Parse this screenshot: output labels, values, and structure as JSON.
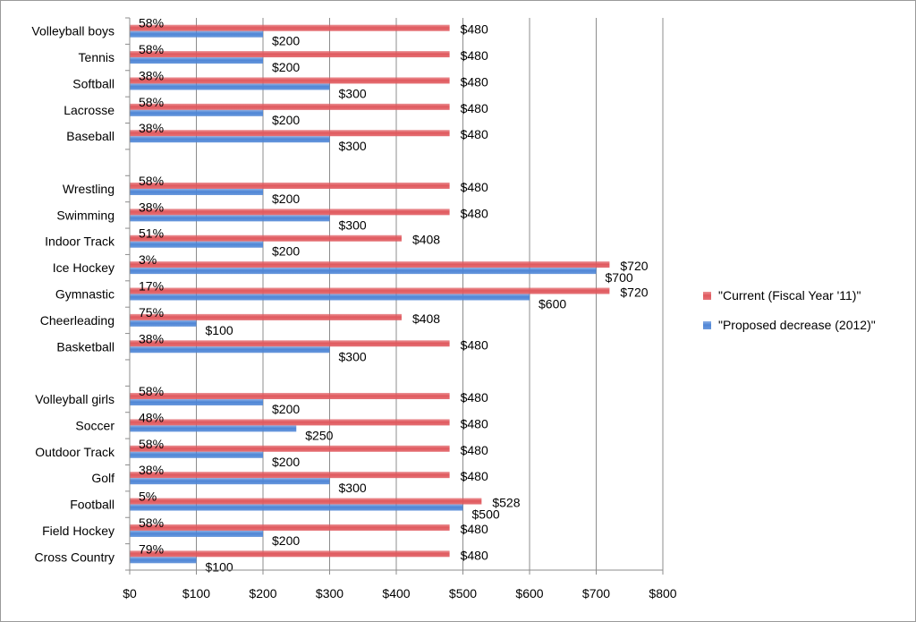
{
  "chart_data": {
    "type": "bar",
    "orientation": "horizontal",
    "categories": [
      "Volleyball boys",
      "Tennis",
      "Softball",
      "Lacrosse",
      "Baseball",
      "",
      "Wrestling",
      "Swimming",
      "Indoor Track",
      "Ice Hockey",
      "Gymnastic",
      "Cheerleading",
      "Basketball",
      "",
      "Volleyball girls",
      "Soccer",
      "Outdoor Track",
      "Golf",
      "Football",
      "Field Hockey",
      "Cross Country"
    ],
    "series": [
      {
        "name": "\"Current (Fiscal Year '11)\"",
        "color": "#e0595e",
        "values": [
          480,
          480,
          480,
          480,
          480,
          null,
          480,
          480,
          408,
          720,
          720,
          408,
          480,
          null,
          480,
          480,
          480,
          480,
          528,
          480,
          480
        ],
        "labels": [
          "$480",
          "$480",
          "$480",
          "$480",
          "$480",
          "",
          "$480",
          "$480",
          "$408",
          "$720",
          "$720",
          "$408",
          "$480",
          "",
          "$480",
          "$480",
          "$480",
          "$480",
          "$528",
          "$480",
          "$480"
        ]
      },
      {
        "name": "\"Proposed decrease (2012)\"",
        "color": "#4f86d6",
        "values": [
          200,
          200,
          300,
          200,
          300,
          null,
          200,
          300,
          200,
          700,
          600,
          100,
          300,
          null,
          200,
          250,
          200,
          300,
          500,
          200,
          100
        ],
        "labels": [
          "$200",
          "$200",
          "$300",
          "$200",
          "$300",
          "",
          "$200",
          "$300",
          "$200",
          "$700",
          "$600",
          "$100",
          "$300",
          "",
          "$200",
          "$250",
          "$200",
          "$300",
          "$500",
          "$200",
          "$100"
        ]
      }
    ],
    "percent_labels": [
      "58%",
      "58%",
      "38%",
      "58%",
      "38%",
      "",
      "58%",
      "38%",
      "51%",
      "3%",
      "17%",
      "75%",
      "38%",
      "",
      "58%",
      "48%",
      "58%",
      "38%",
      "5%",
      "58%",
      "79%"
    ],
    "x_ticks": [
      "$0",
      "$100",
      "$200",
      "$300",
      "$400",
      "$500",
      "$600",
      "$700",
      "$800"
    ],
    "xlim": [
      0,
      800
    ],
    "title": "",
    "xlabel": "",
    "ylabel": "",
    "grid": "vertical",
    "legend_position": "right"
  }
}
